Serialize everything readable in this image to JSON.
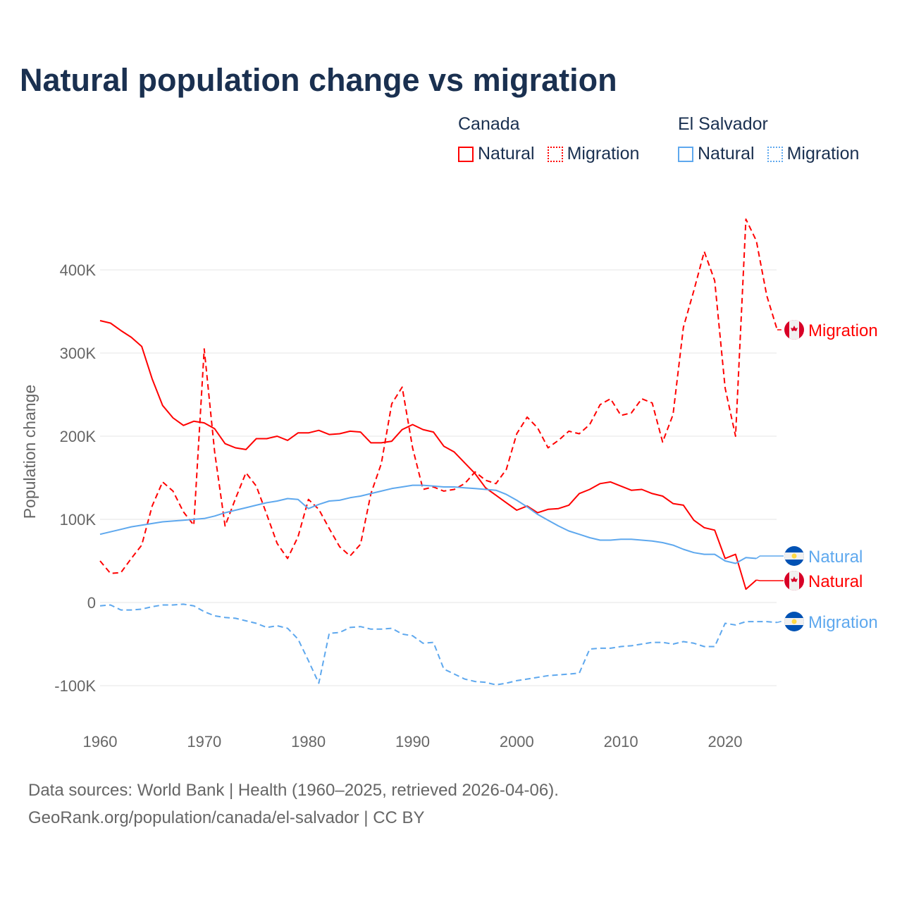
{
  "title": "Natural population change vs migration",
  "legend": {
    "groups": [
      {
        "name": "Canada",
        "items": [
          "Natural",
          "Migration"
        ],
        "color": "#ff0000"
      },
      {
        "name": "El Salvador",
        "items": [
          "Natural",
          "Migration"
        ],
        "color": "#5ea8ee"
      }
    ]
  },
  "source_lines": [
    "Data sources: World Bank | Health (1960–2025, retrieved 2026-04-06).",
    "GeoRank.org/population/canada/el-salvador | CC BY"
  ],
  "chart_data": {
    "type": "line",
    "title": "Natural population change vs migration",
    "xlabel": "",
    "ylabel": "Population change",
    "xlim": [
      1960,
      2025
    ],
    "ylim": [
      -130000,
      480000
    ],
    "x_ticks": [
      1960,
      1970,
      1980,
      1990,
      2000,
      2010,
      2020
    ],
    "y_ticks": [
      {
        "v": -100000,
        "label": "-100K"
      },
      {
        "v": 0,
        "label": "0"
      },
      {
        "v": 100000,
        "label": "100K"
      },
      {
        "v": 200000,
        "label": "200K"
      },
      {
        "v": 300000,
        "label": "300K"
      },
      {
        "v": 400000,
        "label": "400K"
      }
    ],
    "grid": true,
    "legend_position": "top-right",
    "start_year": 1960,
    "series": [
      {
        "name": "Canada Natural",
        "country": "Canada",
        "kind": "Natural",
        "label": "Natural",
        "color": "#ff0000",
        "dash": false,
        "values": [
          339,
          336,
          327,
          319,
          308,
          269,
          237,
          222,
          213,
          218,
          216,
          209,
          191,
          186,
          184,
          197,
          197,
          200,
          195,
          204,
          204,
          207,
          202,
          203,
          206,
          205,
          192,
          192,
          194,
          208,
          214,
          208,
          205,
          188,
          181,
          168,
          155,
          138,
          129,
          120,
          111,
          116,
          108,
          112,
          113,
          117,
          131,
          136,
          143,
          145,
          140,
          135,
          136,
          131,
          128,
          119,
          117,
          99,
          90,
          87,
          53,
          58,
          16,
          27
        ]
      },
      {
        "name": "Canada Migration",
        "country": "Canada",
        "kind": "Migration",
        "label": "Migration",
        "color": "#ff0000",
        "dash": true,
        "values": [
          50,
          35,
          36,
          53,
          69,
          116,
          145,
          134,
          109,
          93,
          305,
          181,
          92,
          125,
          156,
          140,
          106,
          71,
          53,
          79,
          124,
          112,
          89,
          67,
          56,
          70,
          131,
          167,
          239,
          259,
          186,
          136,
          139,
          134,
          136,
          143,
          157,
          147,
          143,
          160,
          203,
          223,
          210,
          186,
          195,
          206,
          203,
          214,
          238,
          245,
          225,
          228,
          245,
          240,
          193,
          226,
          331,
          375,
          422,
          387,
          258,
          200,
          461,
          435,
          369,
          328
        ]
      },
      {
        "name": "El Salvador Natural",
        "country": "El Salvador",
        "kind": "Natural",
        "label": "Natural",
        "color": "#5ea8ee",
        "dash": false,
        "values": [
          82,
          85,
          88,
          91,
          93,
          95,
          97,
          98,
          99,
          100,
          101,
          104,
          108,
          111,
          114,
          117,
          120,
          122,
          125,
          124,
          113,
          118,
          122,
          123,
          126,
          128,
          131,
          134,
          137,
          139,
          141,
          141,
          140,
          139,
          139,
          138,
          137,
          136,
          135,
          130,
          123,
          115,
          106,
          99,
          92,
          86,
          82,
          78,
          75,
          75,
          76,
          76,
          75,
          74,
          72,
          69,
          64,
          60,
          58,
          58,
          50,
          47,
          54,
          53
        ]
      },
      {
        "name": "El Salvador Migration",
        "country": "El Salvador",
        "kind": "Migration",
        "label": "Migration",
        "color": "#5ea8ee",
        "dash": true,
        "values": [
          -4,
          -3,
          -9,
          -9,
          -8,
          -5,
          -3,
          -3,
          -2,
          -4,
          -11,
          -16,
          -18,
          -19,
          -22,
          -25,
          -30,
          -28,
          -31,
          -44,
          -70,
          -97,
          -37,
          -36,
          -30,
          -29,
          -32,
          -32,
          -31,
          -38,
          -40,
          -49,
          -48,
          -80,
          -86,
          -92,
          -95,
          -96,
          -99,
          -97,
          -94,
          -92,
          -90,
          -88,
          -87,
          -86,
          -85,
          -56,
          -55,
          -55,
          -53,
          -52,
          -50,
          -48,
          -48,
          -50,
          -47,
          -49,
          -53,
          -53,
          -25,
          -27,
          -23,
          -23,
          -23,
          -24
        ]
      }
    ],
    "value_unit": "thousands"
  }
}
